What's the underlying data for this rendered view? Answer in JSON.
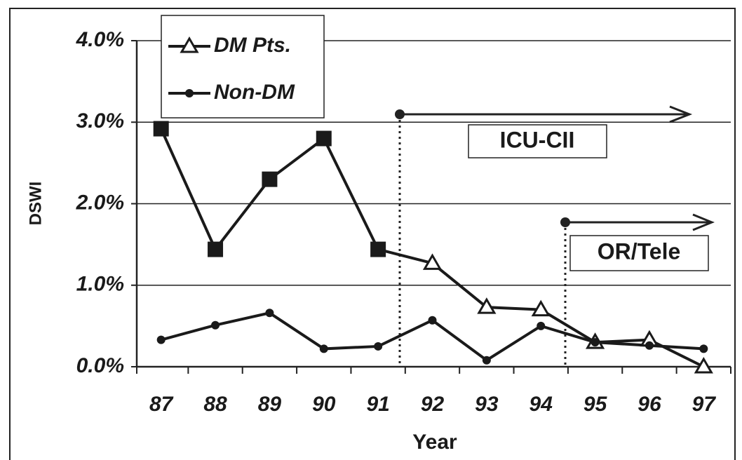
{
  "chart_data": {
    "type": "line",
    "x_label": "Year",
    "y_label": "DSWI",
    "categories": [
      "87",
      "88",
      "89",
      "90",
      "91",
      "92",
      "93",
      "94",
      "95",
      "96",
      "97"
    ],
    "series": [
      {
        "name": "DM Pts.",
        "color": "#1a1a1a",
        "marker": "triangle",
        "point_markers": [
          "square",
          "square",
          "square",
          "square",
          "square",
          "triangle",
          "triangle",
          "triangle",
          "triangle",
          "triangle",
          "triangle"
        ],
        "values": [
          2.92,
          1.44,
          2.3,
          2.8,
          1.44,
          1.27,
          0.73,
          0.7,
          0.3,
          0.33,
          0.0
        ]
      },
      {
        "name": "Non-DM",
        "color": "#1a1a1a",
        "marker": "circle",
        "values": [
          0.33,
          0.51,
          0.66,
          0.22,
          0.25,
          0.57,
          0.08,
          0.5,
          0.3,
          0.26,
          0.22
        ]
      }
    ],
    "ylim": [
      0,
      4
    ],
    "yticks": [
      {
        "value": 0,
        "label": "0.0%"
      },
      {
        "value": 1,
        "label": "1.0%"
      },
      {
        "value": 2,
        "label": "2.0%"
      },
      {
        "value": 3,
        "label": "3.0%"
      },
      {
        "value": 4,
        "label": "4.0%"
      }
    ],
    "grid": true,
    "legend": "upper-left",
    "annotations": [
      "ICU-CII",
      "OR/Tele"
    ]
  }
}
